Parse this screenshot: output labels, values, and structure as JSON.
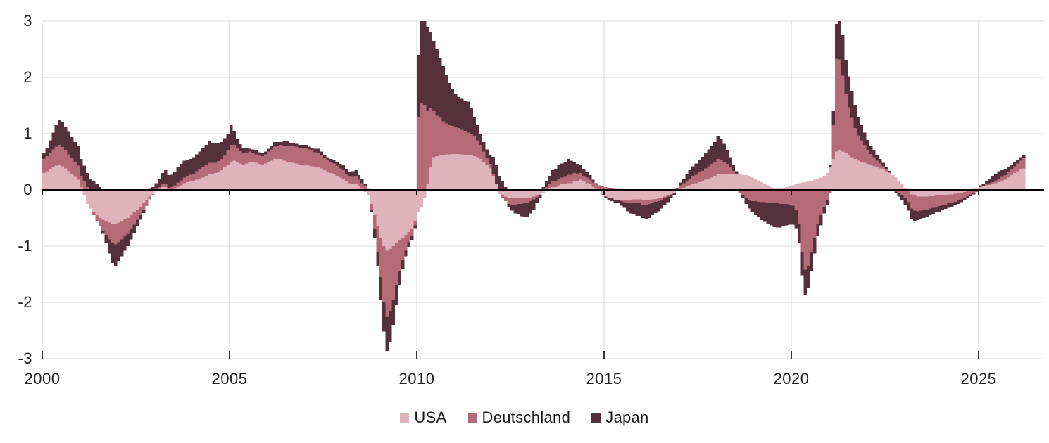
{
  "chart_data": {
    "type": "bar",
    "stacked": true,
    "frequency": "monthly",
    "start_year": 2000,
    "start_month": 1,
    "x_tick_labels": [
      "2000",
      "2005",
      "2010",
      "2015",
      "2020",
      "2025"
    ],
    "x_tick_years": [
      2000,
      2005,
      2010,
      2015,
      2020,
      2025
    ],
    "y_ticks": [
      3,
      2,
      1,
      0,
      -1,
      -2,
      -3
    ],
    "ylim": [
      -3,
      3
    ],
    "grid": true,
    "legend_position": "bottom",
    "background_color": "#FFFFFF",
    "gridline_color": "#D9D9D9",
    "zero_line_color": "#000000",
    "axis_text_color": "#1F1F1F",
    "series": [
      {
        "name": "USA",
        "color": "#DFB3BC",
        "values": [
          0.3,
          0.33,
          0.36,
          0.4,
          0.43,
          0.45,
          0.42,
          0.38,
          0.33,
          0.28,
          0.23,
          0.18,
          0.05,
          -0.1,
          -0.25,
          -0.33,
          -0.4,
          -0.45,
          -0.5,
          -0.53,
          -0.55,
          -0.58,
          -0.6,
          -0.6,
          -0.58,
          -0.55,
          -0.52,
          -0.5,
          -0.45,
          -0.4,
          -0.35,
          -0.3,
          -0.24,
          -0.18,
          -0.12,
          -0.08,
          0.0,
          0.02,
          0.05,
          0.05,
          0.0,
          -0.03,
          0.02,
          0.05,
          0.08,
          0.12,
          0.14,
          0.15,
          0.16,
          0.18,
          0.2,
          0.22,
          0.25,
          0.28,
          0.29,
          0.3,
          0.32,
          0.35,
          0.4,
          0.45,
          0.5,
          0.52,
          0.5,
          0.47,
          0.45,
          0.47,
          0.5,
          0.49,
          0.48,
          0.46,
          0.45,
          0.47,
          0.5,
          0.52,
          0.55,
          0.55,
          0.55,
          0.52,
          0.5,
          0.49,
          0.48,
          0.47,
          0.45,
          0.45,
          0.45,
          0.43,
          0.42,
          0.41,
          0.4,
          0.38,
          0.35,
          0.32,
          0.3,
          0.28,
          0.25,
          0.22,
          0.2,
          0.16,
          0.12,
          0.1,
          0.1,
          0.06,
          0.02,
          -0.04,
          -0.1,
          -0.25,
          -0.45,
          -0.65,
          -0.85,
          -1.0,
          -1.08,
          -1.05,
          -1.0,
          -0.95,
          -0.9,
          -0.85,
          -0.8,
          -0.75,
          -0.7,
          -0.55,
          -0.4,
          -0.3,
          -0.15,
          0.1,
          0.4,
          0.58,
          0.6,
          0.62,
          0.62,
          0.63,
          0.63,
          0.64,
          0.64,
          0.64,
          0.63,
          0.62,
          0.62,
          0.62,
          0.6,
          0.58,
          0.55,
          0.5,
          0.45,
          0.38,
          0.25,
          0.1,
          -0.05,
          -0.1,
          -0.12,
          -0.15,
          -0.15,
          -0.15,
          -0.15,
          -0.15,
          -0.15,
          -0.15,
          -0.15,
          -0.12,
          -0.1,
          -0.08,
          -0.05,
          -0.02,
          0.02,
          0.05,
          0.05,
          0.08,
          0.1,
          0.1,
          0.12,
          0.12,
          0.15,
          0.15,
          0.18,
          0.15,
          0.12,
          0.1,
          0.05,
          0.02,
          -0.02,
          -0.08,
          -0.12,
          -0.15,
          -0.15,
          -0.18,
          -0.18,
          -0.18,
          -0.18,
          -0.18,
          -0.18,
          -0.17,
          -0.17,
          -0.17,
          -0.18,
          -0.18,
          -0.18,
          -0.17,
          -0.16,
          -0.15,
          -0.14,
          -0.12,
          -0.1,
          -0.08,
          -0.05,
          -0.02,
          0.02,
          0.04,
          0.06,
          0.08,
          0.1,
          0.12,
          0.14,
          0.16,
          0.18,
          0.2,
          0.22,
          0.25,
          0.28,
          0.28,
          0.28,
          0.28,
          0.28,
          0.28,
          0.28,
          0.28,
          0.27,
          0.26,
          0.25,
          0.22,
          0.2,
          0.17,
          0.14,
          0.11,
          0.08,
          0.05,
          0.04,
          0.03,
          0.03,
          0.04,
          0.05,
          0.06,
          0.08,
          0.1,
          0.12,
          0.13,
          0.14,
          0.15,
          0.16,
          0.18,
          0.2,
          0.22,
          0.25,
          0.3,
          0.4,
          0.55,
          0.68,
          0.7,
          0.68,
          0.65,
          0.62,
          0.58,
          0.55,
          0.52,
          0.5,
          0.48,
          0.46,
          0.44,
          0.42,
          0.4,
          0.38,
          0.36,
          0.33,
          0.3,
          0.26,
          0.22,
          0.16,
          0.1,
          0.04,
          -0.02,
          -0.08,
          -0.1,
          -0.12,
          -0.12,
          -0.12,
          -0.12,
          -0.11,
          -0.11,
          -0.1,
          -0.1,
          -0.09,
          -0.09,
          -0.08,
          -0.08,
          -0.07,
          -0.06,
          -0.05,
          -0.04,
          -0.02,
          0.0,
          0.02,
          0.04,
          0.05,
          0.06,
          0.08,
          0.09,
          0.1,
          0.12,
          0.14,
          0.16,
          0.18,
          0.22,
          0.26,
          0.3,
          0.33,
          0.36,
          0.38
        ]
      },
      {
        "name": "Deutschland",
        "color": "#B56A78",
        "values": [
          0.25,
          0.27,
          0.3,
          0.32,
          0.34,
          0.35,
          0.34,
          0.32,
          0.3,
          0.28,
          0.26,
          0.25,
          0.2,
          0.15,
          0.05,
          0.0,
          -0.05,
          -0.1,
          -0.15,
          -0.2,
          -0.25,
          -0.3,
          -0.35,
          -0.37,
          -0.35,
          -0.33,
          -0.3,
          -0.28,
          -0.25,
          -0.22,
          -0.18,
          -0.15,
          -0.12,
          -0.08,
          -0.05,
          -0.02,
          0.02,
          0.03,
          0.05,
          0.05,
          0.04,
          0.05,
          0.06,
          0.08,
          0.09,
          0.1,
          0.11,
          0.12,
          0.13,
          0.15,
          0.16,
          0.18,
          0.19,
          0.2,
          0.19,
          0.18,
          0.19,
          0.2,
          0.22,
          0.25,
          0.3,
          0.28,
          0.25,
          0.22,
          0.2,
          0.19,
          0.18,
          0.17,
          0.15,
          0.15,
          0.15,
          0.16,
          0.18,
          0.2,
          0.22,
          0.24,
          0.25,
          0.26,
          0.28,
          0.29,
          0.3,
          0.3,
          0.3,
          0.3,
          0.3,
          0.29,
          0.28,
          0.26,
          0.25,
          0.24,
          0.22,
          0.21,
          0.2,
          0.19,
          0.18,
          0.16,
          0.15,
          0.13,
          0.12,
          0.13,
          0.15,
          0.12,
          0.1,
          0.06,
          0.02,
          -0.1,
          -0.25,
          -0.45,
          -0.7,
          -1.0,
          -1.18,
          -1.1,
          -0.95,
          -0.75,
          -0.55,
          -0.4,
          -0.28,
          -0.18,
          -0.12,
          -0.08,
          1.3,
          1.55,
          1.5,
          1.3,
          1.05,
          0.82,
          0.72,
          0.66,
          0.6,
          0.55,
          0.52,
          0.5,
          0.48,
          0.46,
          0.44,
          0.42,
          0.4,
          0.38,
          0.35,
          0.3,
          0.25,
          0.18,
          0.12,
          0.08,
          0.04,
          0.0,
          -0.02,
          -0.05,
          -0.08,
          -0.1,
          -0.12,
          -0.12,
          -0.1,
          -0.1,
          -0.08,
          -0.08,
          -0.05,
          -0.05,
          -0.03,
          -0.02,
          0.02,
          0.05,
          0.08,
          0.1,
          0.1,
          0.12,
          0.12,
          0.13,
          0.15,
          0.15,
          0.15,
          0.13,
          0.12,
          0.1,
          0.1,
          0.08,
          0.08,
          0.08,
          0.08,
          0.06,
          0.05,
          0.04,
          0.03,
          0.02,
          0.0,
          -0.02,
          -0.04,
          -0.05,
          -0.06,
          -0.06,
          -0.07,
          -0.07,
          -0.08,
          -0.08,
          -0.07,
          -0.06,
          -0.05,
          -0.05,
          -0.04,
          -0.03,
          -0.02,
          0.0,
          0.02,
          0.04,
          0.06,
          0.08,
          0.1,
          0.12,
          0.14,
          0.15,
          0.17,
          0.18,
          0.2,
          0.22,
          0.24,
          0.25,
          0.27,
          0.25,
          0.22,
          0.18,
          0.12,
          0.06,
          0.0,
          -0.05,
          -0.1,
          -0.15,
          -0.18,
          -0.2,
          -0.2,
          -0.21,
          -0.22,
          -0.22,
          -0.23,
          -0.23,
          -0.24,
          -0.24,
          -0.25,
          -0.25,
          -0.25,
          -0.26,
          -0.28,
          -0.35,
          -0.6,
          -1.1,
          -1.42,
          -1.35,
          -1.1,
          -0.85,
          -0.6,
          -0.45,
          -0.3,
          -0.18,
          -0.05,
          0.6,
          1.65,
          1.62,
          1.35,
          1.05,
          0.85,
          0.7,
          0.55,
          0.45,
          0.38,
          0.32,
          0.25,
          0.2,
          0.16,
          0.12,
          0.09,
          0.06,
          0.04,
          0.02,
          0.0,
          -0.03,
          -0.06,
          -0.1,
          -0.15,
          -0.2,
          -0.25,
          -0.27,
          -0.26,
          -0.25,
          -0.24,
          -0.23,
          -0.22,
          -0.21,
          -0.2,
          -0.19,
          -0.18,
          -0.17,
          -0.16,
          -0.15,
          -0.14,
          -0.13,
          -0.12,
          -0.1,
          -0.09,
          -0.08,
          -0.06,
          -0.04,
          -0.02,
          0.0,
          0.02,
          0.03,
          0.04,
          0.05,
          0.06,
          0.07,
          0.08,
          0.09,
          0.1,
          0.12,
          0.14,
          0.16,
          0.18
        ]
      },
      {
        "name": "Japan",
        "color": "#54303B",
        "values": [
          0.1,
          0.15,
          0.22,
          0.3,
          0.38,
          0.45,
          0.44,
          0.42,
          0.4,
          0.38,
          0.36,
          0.35,
          0.3,
          0.28,
          0.25,
          0.2,
          0.15,
          0.1,
          0.05,
          -0.05,
          -0.15,
          -0.25,
          -0.35,
          -0.38,
          -0.33,
          -0.3,
          -0.26,
          -0.22,
          -0.18,
          -0.15,
          -0.11,
          -0.08,
          -0.05,
          -0.02,
          0.02,
          0.05,
          0.1,
          0.15,
          0.2,
          0.25,
          0.22,
          0.22,
          0.24,
          0.28,
          0.29,
          0.3,
          0.29,
          0.28,
          0.29,
          0.3,
          0.32,
          0.35,
          0.36,
          0.38,
          0.36,
          0.35,
          0.32,
          0.3,
          0.3,
          0.3,
          0.35,
          0.25,
          0.15,
          0.12,
          0.1,
          0.08,
          0.05,
          0.06,
          0.08,
          0.06,
          0.05,
          0.05,
          0.05,
          0.06,
          0.08,
          0.06,
          0.05,
          0.08,
          0.08,
          0.06,
          0.05,
          0.05,
          0.05,
          0.05,
          0.05,
          0.05,
          0.05,
          0.06,
          0.08,
          0.06,
          0.05,
          0.05,
          0.05,
          0.06,
          0.07,
          0.08,
          0.1,
          0.08,
          0.08,
          0.1,
          0.1,
          0.08,
          0.08,
          0.04,
          0.0,
          -0.05,
          -0.15,
          -0.25,
          -0.4,
          -0.52,
          -0.6,
          -0.55,
          -0.45,
          -0.35,
          -0.25,
          -0.15,
          -0.1,
          -0.08,
          -0.08,
          -0.05,
          1.1,
          1.45,
          1.5,
          1.5,
          1.35,
          1.25,
          1.18,
          1.07,
          0.98,
          0.87,
          0.75,
          0.66,
          0.58,
          0.55,
          0.55,
          0.54,
          0.55,
          0.45,
          0.35,
          0.27,
          0.2,
          0.17,
          0.15,
          0.16,
          0.3,
          0.35,
          0.25,
          0.15,
          0.05,
          -0.05,
          -0.1,
          -0.15,
          -0.18,
          -0.22,
          -0.25,
          -0.25,
          -0.22,
          -0.18,
          -0.1,
          -0.05,
          0.03,
          0.1,
          0.15,
          0.2,
          0.22,
          0.25,
          0.25,
          0.27,
          0.28,
          0.25,
          0.2,
          0.18,
          0.15,
          0.12,
          0.1,
          0.08,
          0.05,
          0.02,
          0.0,
          -0.02,
          -0.03,
          -0.04,
          -0.05,
          -0.05,
          -0.06,
          -0.08,
          -0.1,
          -0.15,
          -0.18,
          -0.2,
          -0.22,
          -0.22,
          -0.24,
          -0.26,
          -0.25,
          -0.22,
          -0.2,
          -0.18,
          -0.15,
          -0.12,
          -0.1,
          -0.07,
          -0.04,
          0.0,
          0.05,
          0.08,
          0.12,
          0.15,
          0.18,
          0.2,
          0.22,
          0.25,
          0.28,
          0.3,
          0.32,
          0.35,
          0.4,
          0.38,
          0.32,
          0.25,
          0.18,
          0.1,
          0.05,
          0.0,
          -0.05,
          -0.1,
          -0.15,
          -0.2,
          -0.25,
          -0.28,
          -0.32,
          -0.35,
          -0.38,
          -0.4,
          -0.42,
          -0.43,
          -0.42,
          -0.4,
          -0.38,
          -0.36,
          -0.34,
          -0.33,
          -0.35,
          -0.42,
          -0.45,
          -0.4,
          -0.35,
          -0.28,
          -0.22,
          -0.18,
          -0.12,
          -0.08,
          0.05,
          0.25,
          0.62,
          0.68,
          0.72,
          0.6,
          0.55,
          0.48,
          0.4,
          0.33,
          0.27,
          0.22,
          0.18,
          0.15,
          0.12,
          0.1,
          0.08,
          0.06,
          0.04,
          0.02,
          0.0,
          -0.03,
          -0.06,
          -0.08,
          -0.12,
          -0.15,
          -0.18,
          -0.18,
          -0.16,
          -0.15,
          -0.14,
          -0.13,
          -0.12,
          -0.11,
          -0.1,
          -0.1,
          -0.09,
          -0.08,
          -0.08,
          -0.07,
          -0.06,
          -0.06,
          -0.05,
          -0.04,
          -0.04,
          -0.03,
          -0.02,
          0.0,
          0.03,
          0.05,
          0.06,
          0.08,
          0.1,
          0.12,
          0.13,
          0.12,
          0.1,
          0.09,
          0.08,
          0.07,
          0.06,
          0.06,
          0.05
        ]
      }
    ]
  }
}
